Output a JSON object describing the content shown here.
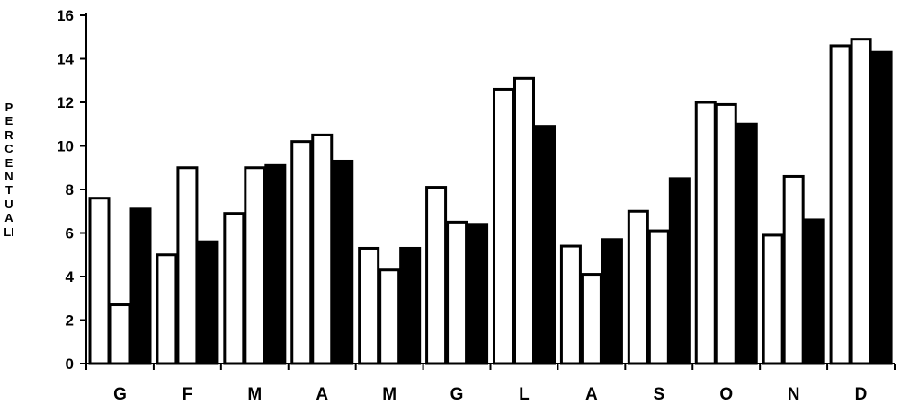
{
  "chart_data": {
    "type": "bar",
    "ylabel": "PERCENTUALI",
    "xlabel": "",
    "title": "",
    "categories": [
      "G",
      "F",
      "M",
      "A",
      "M",
      "G",
      "L",
      "A",
      "S",
      "O",
      "N",
      "D"
    ],
    "yticks": [
      "0",
      "2",
      "4",
      "6",
      "8",
      "10",
      "12",
      "14",
      "16"
    ],
    "ylim": [
      0,
      16
    ],
    "grid": false,
    "series": [
      {
        "values": [
          7.6,
          5.0,
          6.9,
          10.2,
          5.3,
          8.1,
          12.6,
          5.4,
          7.0,
          12.0,
          5.9,
          14.6
        ],
        "color": "#ffffff"
      },
      {
        "values": [
          2.7,
          9.0,
          9.0,
          10.5,
          4.3,
          6.5,
          13.1,
          4.1,
          6.1,
          11.9,
          8.6,
          14.9
        ],
        "color": "#ffffff"
      },
      {
        "values": [
          7.1,
          5.6,
          9.1,
          9.3,
          5.3,
          6.4,
          10.9,
          5.7,
          8.5,
          11.0,
          6.6,
          14.3
        ],
        "color": "#000000"
      }
    ]
  }
}
